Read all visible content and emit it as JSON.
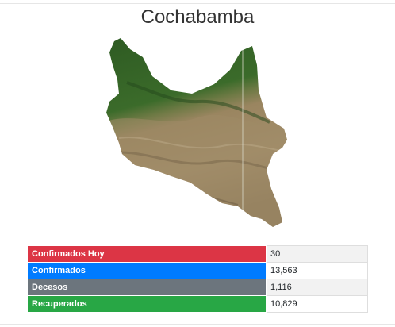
{
  "page": {
    "title": "Cochabamba"
  },
  "stats": [
    {
      "label": "Confirmados Hoy",
      "value": "30",
      "color": "#dc3545"
    },
    {
      "label": "Confirmados",
      "value": "13,563",
      "color": "#007bff"
    },
    {
      "label": "Decesos",
      "value": "1,116",
      "color": "#6c757d"
    },
    {
      "label": "Recuperados",
      "value": "10,829",
      "color": "#28a745"
    }
  ],
  "map": {
    "icon": "cochabamba-satellite-map"
  }
}
